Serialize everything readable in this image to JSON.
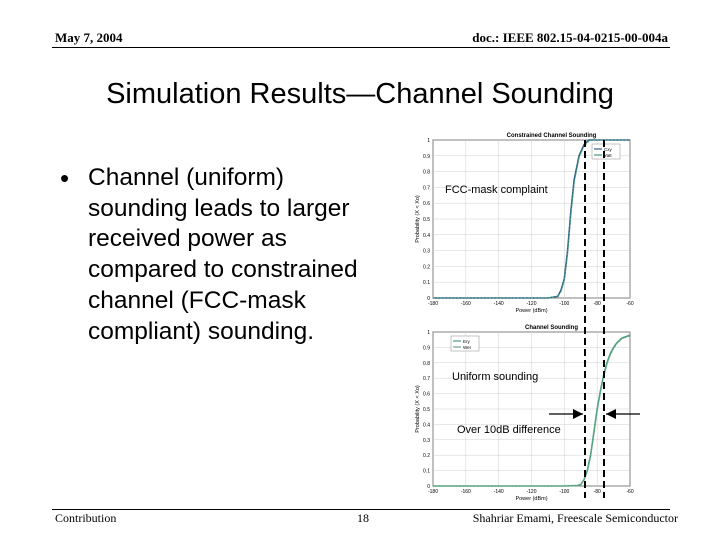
{
  "header": {
    "date": "May 7, 2004",
    "doc": "doc.: IEEE 802.15-04-0215-00-004a"
  },
  "title": "Simulation Results—Channel Sounding",
  "bullet": "Channel (uniform) sounding leads to larger received power as compared to constrained channel (FCC-mask compliant) sounding.",
  "footer": {
    "left": "Contribution",
    "page": "18",
    "right": "Shahriar Emami, Freescale Semiconductor"
  },
  "annotations": {
    "top": "FCC-mask complaint",
    "bottom": "Uniform sounding",
    "difference": "Over 10dB difference"
  },
  "chart_data": [
    {
      "type": "line",
      "title": "Constrained Channel Sounding",
      "xlabel": "Power (dBm)",
      "ylabel": "Probability (X < Xo)",
      "xlim": [
        -180,
        -60
      ],
      "ylim": [
        0,
        1
      ],
      "x_ticks": [
        "-180",
        "-160",
        "-140",
        "-120",
        "-100",
        "-80",
        "-60"
      ],
      "y_ticks": [
        "0",
        "0.1",
        "0.2",
        "0.3",
        "0.4",
        "0.5",
        "0.6",
        "0.7",
        "0.8",
        "0.9",
        "1"
      ],
      "legend": [
        "Cxy",
        "Yatt"
      ],
      "legend_position": "top-right",
      "grid": true,
      "series": [
        {
          "name": "Cxy",
          "color": "#2f5f8a",
          "x": [
            -180,
            -150,
            -110,
            -104,
            -102,
            -100,
            -98,
            -96,
            -94,
            -91,
            -88,
            -85,
            -82,
            -60
          ],
          "y": [
            0,
            0,
            0,
            0.01,
            0.05,
            0.12,
            0.3,
            0.55,
            0.75,
            0.9,
            0.97,
            1,
            1,
            1
          ]
        },
        {
          "name": "Yatt",
          "color": "#4a9e7a",
          "x": [
            -180,
            -150,
            -110,
            -104,
            -102,
            -100,
            -98,
            -96,
            -94,
            -91,
            -88,
            -85,
            -82,
            -60
          ],
          "y": [
            0,
            0,
            0,
            0.01,
            0.04,
            0.11,
            0.28,
            0.53,
            0.73,
            0.89,
            0.96,
            0.995,
            1,
            1
          ]
        }
      ]
    },
    {
      "type": "line",
      "title": "Channel Sounding",
      "xlabel": "Power (dBm)",
      "ylabel": "Probability (X < Xo)",
      "xlim": [
        -180,
        -60
      ],
      "ylim": [
        0,
        1
      ],
      "x_ticks": [
        "-180",
        "-160",
        "-140",
        "-120",
        "-100",
        "-80",
        "-60"
      ],
      "y_ticks": [
        "0",
        "0.1",
        "0.2",
        "0.3",
        "0.4",
        "0.5",
        "0.6",
        "0.7",
        "0.8",
        "0.9",
        "1"
      ],
      "legend": [
        "Ery",
        "Wer"
      ],
      "legend_position": "top-left",
      "grid": true,
      "series": [
        {
          "name": "Ery",
          "color": "#4a9e7a",
          "x": [
            -180,
            -150,
            -100,
            -92,
            -90,
            -88,
            -86,
            -84,
            -82,
            -80,
            -78,
            -76,
            -74,
            -72,
            -70,
            -68,
            -65,
            -60
          ],
          "y": [
            0,
            0,
            0,
            0.003,
            0.01,
            0.04,
            0.1,
            0.2,
            0.35,
            0.5,
            0.62,
            0.72,
            0.8,
            0.86,
            0.9,
            0.93,
            0.96,
            0.98
          ]
        },
        {
          "name": "Wer",
          "color": "#6aaa8a",
          "x": [
            -180,
            -150,
            -100,
            -92,
            -90,
            -88,
            -86,
            -84,
            -82,
            -80,
            -78,
            -76,
            -74,
            -72,
            -70,
            -68,
            -65,
            -60
          ],
          "y": [
            0,
            0,
            0,
            0.003,
            0.009,
            0.038,
            0.095,
            0.19,
            0.34,
            0.49,
            0.61,
            0.71,
            0.79,
            0.85,
            0.89,
            0.925,
            0.955,
            0.975
          ]
        }
      ]
    }
  ]
}
